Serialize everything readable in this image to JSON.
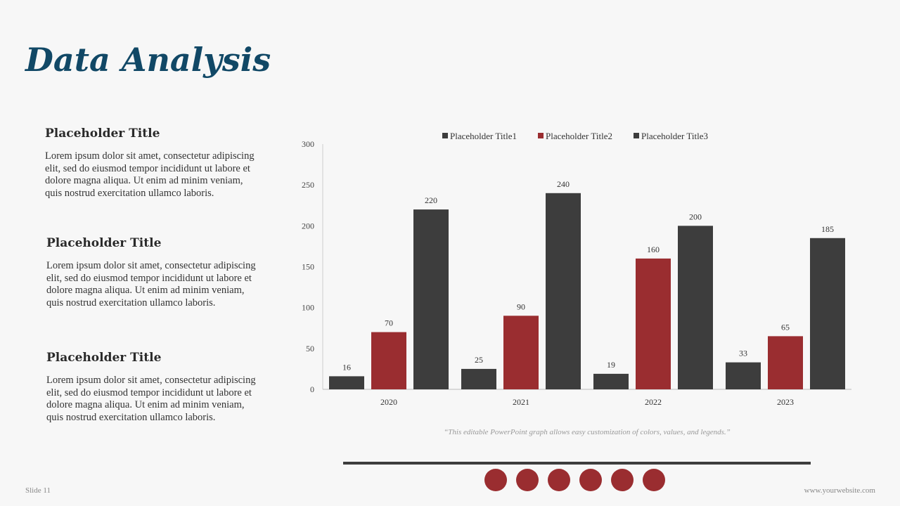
{
  "title": "Data Analysis",
  "blocks": [
    {
      "heading": "Placeholder Title",
      "body": "Lorem ipsum dolor sit amet, consectetur adipiscing elit, sed do eiusmod tempor incididunt ut labore et dolore magna aliqua. Ut enim ad minim veniam, quis nostrud exercitation ullamco laboris."
    },
    {
      "heading": "Placeholder Title",
      "body": "Lorem ipsum dolor sit amet, consectetur adipiscing elit, sed do eiusmod tempor incididunt ut labore et dolore magna aliqua. Ut enim ad minim veniam, quis nostrud exercitation ullamco laboris."
    },
    {
      "heading": "Placeholder Title",
      "body": "Lorem ipsum dolor sit amet, consectetur adipiscing elit, sed do eiusmod tempor incididunt ut labore et dolore magna aliqua. Ut enim ad minim veniam, quis nostrud exercitation ullamco laboris."
    }
  ],
  "note": "“This editable PowerPoint graph allows easy customization of colors, values, and legends.”",
  "footer": {
    "slide": "Slide 11",
    "website": "www.yourwebsite.com"
  },
  "chart_data": {
    "type": "bar",
    "categories": [
      "2020",
      "2021",
      "2022",
      "2023"
    ],
    "series": [
      {
        "name": "Placeholder Title1",
        "color": "#3d3d3d",
        "values": [
          16,
          25,
          19,
          33
        ]
      },
      {
        "name": "Placeholder Title2",
        "color": "#9a2d30",
        "values": [
          70,
          90,
          160,
          65
        ]
      },
      {
        "name": "Placeholder Title3",
        "color": "#3d3d3d",
        "values": [
          220,
          240,
          200,
          185
        ]
      }
    ],
    "ylim": [
      0,
      300
    ],
    "yticks": [
      0,
      50,
      100,
      150,
      200,
      250,
      300
    ],
    "grid": false,
    "legend": "top",
    "data_labels": true
  }
}
